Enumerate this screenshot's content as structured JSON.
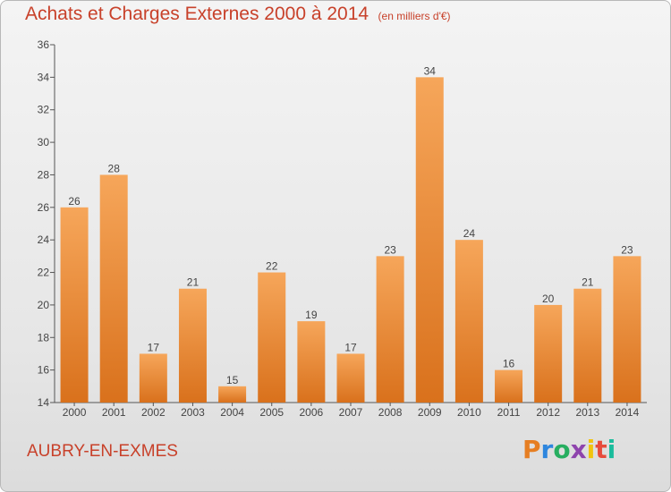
{
  "header": {
    "title": "Achats et Charges Externes 2000 à 2014",
    "subtitle": "(en milliers d'€)"
  },
  "footer": {
    "commune": "AUBRY-EN-EXMES",
    "brand": "Proxiti"
  },
  "colors": {
    "title": "#c8412a",
    "bar_top": "#f6a65a",
    "bar_bottom": "#d9711c",
    "brand_letters": [
      "#e67e22",
      "#2e86de",
      "#27ae60",
      "#8e44ad",
      "#f1c40f",
      "#e74c3c",
      "#1abc9c"
    ]
  },
  "chart_data": {
    "type": "bar",
    "categories": [
      "2000",
      "2001",
      "2002",
      "2003",
      "2004",
      "2005",
      "2006",
      "2007",
      "2008",
      "2009",
      "2010",
      "2011",
      "2012",
      "2013",
      "2014"
    ],
    "values": [
      26,
      28,
      17,
      21,
      15,
      22,
      19,
      17,
      23,
      34,
      24,
      16,
      20,
      21,
      23
    ],
    "data_labels": [
      "26",
      "28",
      "17",
      "21",
      "15",
      "22",
      "19",
      "17",
      "23",
      "34",
      "24",
      "16",
      "20",
      "21",
      "23"
    ],
    "ylim": [
      14,
      36
    ],
    "yticks": [
      14,
      16,
      18,
      20,
      22,
      24,
      26,
      28,
      30,
      32,
      34,
      36
    ],
    "ytick_labels": [
      "14",
      "16",
      "18",
      "20",
      "22",
      "24",
      "26",
      "28",
      "30",
      "32",
      "34",
      "36"
    ],
    "grid": false,
    "xlabel": "",
    "ylabel": ""
  }
}
